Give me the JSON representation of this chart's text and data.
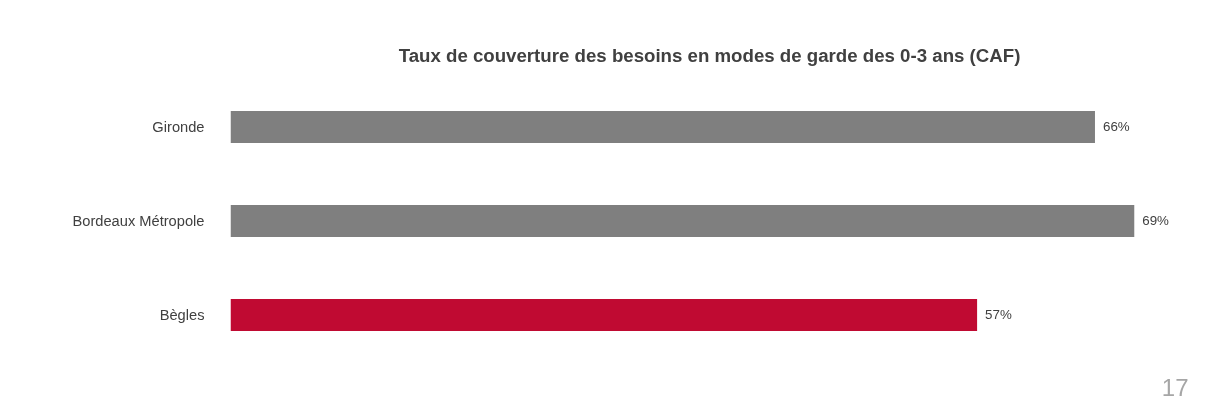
{
  "chart_data": {
    "type": "bar",
    "orientation": "horizontal",
    "title": "Taux de couverture des besoins en modes de garde des 0-3 ans (CAF)",
    "categories": [
      "Gironde",
      "Bordeaux Métropole",
      "Bègles"
    ],
    "values": [
      66,
      69,
      57
    ],
    "colors": [
      "#7f7f7f",
      "#7f7f7f",
      "#c00a32"
    ],
    "value_labels": [
      "66%",
      "69%",
      "57%"
    ],
    "tick_labels": "y",
    "annotations": [
      "17"
    ]
  }
}
